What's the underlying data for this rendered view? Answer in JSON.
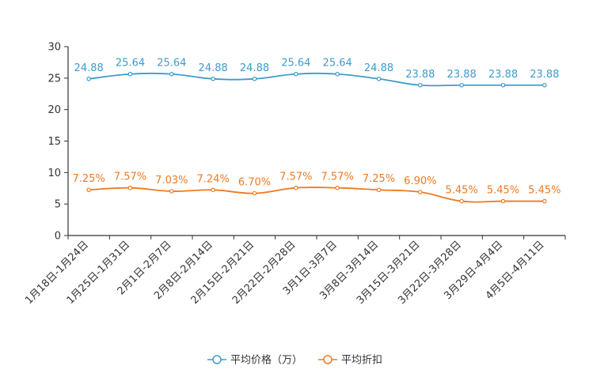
{
  "chart_data": {
    "type": "line",
    "categories": [
      "1月18日-1月24日",
      "1月25日-1月31日",
      "2月1日-2月7日",
      "2月8日-2月14日",
      "2月15日-2月21日",
      "2月22日-2月28日",
      "3月1日-3月7日",
      "3月8日-3月14日",
      "3月15日-3月21日",
      "3月22日-3月28日",
      "3月29日-4月4日",
      "4月5日-4月11日"
    ],
    "series": [
      {
        "name": "平均价格（万）",
        "color": "#3d9ccc",
        "values": [
          24.88,
          25.64,
          25.64,
          24.88,
          24.88,
          25.64,
          25.64,
          24.88,
          23.88,
          23.88,
          23.88,
          23.88
        ],
        "labels": [
          "24.88",
          "25.64",
          "25.64",
          "24.88",
          "24.88",
          "25.64",
          "25.64",
          "24.88",
          "23.88",
          "23.88",
          "23.88",
          "23.88"
        ]
      },
      {
        "name": "平均折扣",
        "color": "#f07a1f",
        "values": [
          7.25,
          7.57,
          7.03,
          7.24,
          6.7,
          7.57,
          7.57,
          7.25,
          6.9,
          5.45,
          5.45,
          5.45
        ],
        "labels": [
          "7.25%",
          "7.57%",
          "7.03%",
          "7.24%",
          "6.70%",
          "7.57%",
          "7.57%",
          "7.25%",
          "6.90%",
          "5.45%",
          "5.45%",
          "5.45%"
        ]
      }
    ],
    "title": "",
    "xlabel": "",
    "ylabel": "",
    "ylim": [
      0,
      30
    ],
    "yticks": [
      "0",
      "5",
      "10",
      "15",
      "20",
      "25",
      "30"
    ],
    "grid": false,
    "legend_position": "bottom-center"
  }
}
